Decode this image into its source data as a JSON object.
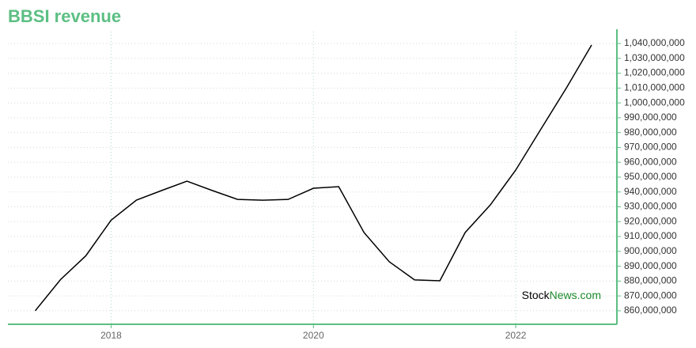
{
  "chart_data": {
    "type": "line",
    "title": "BBSI revenue",
    "watermark": [
      "Stock",
      "News.com"
    ],
    "x": [
      2017.25,
      2017.5,
      2017.75,
      2018.0,
      2018.25,
      2018.5,
      2018.75,
      2019.0,
      2019.25,
      2019.5,
      2019.75,
      2020.0,
      2020.25,
      2020.5,
      2020.75,
      2021.0,
      2021.25,
      2021.5,
      2021.75,
      2022.0,
      2022.25,
      2022.5,
      2022.75
    ],
    "series": [
      {
        "name": "BBSI revenue",
        "color": "#000000",
        "values": [
          860000000,
          881000000,
          897000000,
          921000000,
          934500000,
          941000000,
          947300000,
          941000000,
          935000000,
          934500000,
          935000000,
          942500000,
          943600000,
          912700000,
          893000000,
          880800000,
          880200000,
          912700000,
          931400000,
          954800000,
          982500000,
          1010000000,
          1039000000
        ]
      }
    ],
    "xlim": [
      2016.98,
      2023.0
    ],
    "xticks": [
      2018,
      2020,
      2022
    ],
    "ylim": [
      850900000,
      1048000000
    ],
    "yticks": [
      {
        "value": 860000000,
        "label": "860,000,000"
      },
      {
        "value": 870000000,
        "label": "870,000,000"
      },
      {
        "value": 880000000,
        "label": "880,000,000"
      },
      {
        "value": 890000000,
        "label": "890,000,000"
      },
      {
        "value": 900000000,
        "label": "900,000,000"
      },
      {
        "value": 910000000,
        "label": "910,000,000"
      },
      {
        "value": 920000000,
        "label": "920,000,000"
      },
      {
        "value": 930000000,
        "label": "930,000,000"
      },
      {
        "value": 940000000,
        "label": "940,000,000"
      },
      {
        "value": 950000000,
        "label": "950,000,000"
      },
      {
        "value": 960000000,
        "label": "960,000,000"
      },
      {
        "value": 970000000,
        "label": "970,000,000"
      },
      {
        "value": 980000000,
        "label": "980,000,000"
      },
      {
        "value": 990000000,
        "label": "990,000,000"
      },
      {
        "value": 1000000000,
        "label": "1,000,000,000"
      },
      {
        "value": 1010000000,
        "label": "1,010,000,000"
      },
      {
        "value": 1020000000,
        "label": "1,020,000,000"
      },
      {
        "value": 1030000000,
        "label": "1,030,000,000"
      },
      {
        "value": 1040000000,
        "label": "1,040,000,000"
      }
    ],
    "grid": true
  }
}
